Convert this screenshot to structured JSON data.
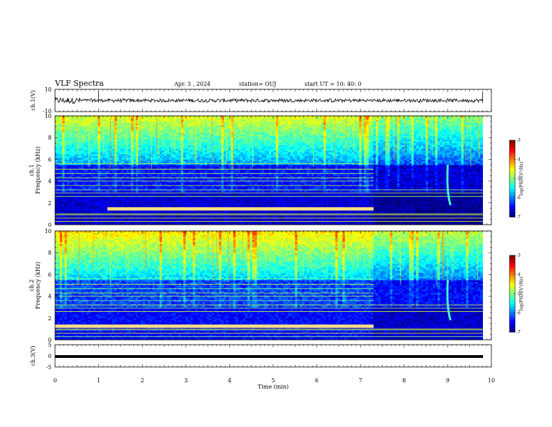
{
  "header": {
    "title": "VLF Spectra",
    "date": "Apr. 3 , 2024",
    "station": "station= OUJ",
    "start": "start  UT  =   10: 40: 0"
  },
  "panels": {
    "ch1_wave": {
      "label": "ch.1(V)",
      "ticks": [
        "10",
        "-10"
      ]
    },
    "ch1_spec": {
      "label_line1": "ch.1",
      "label_line2": "Frequency (kHz)",
      "ticks": [
        "0",
        "2",
        "4",
        "6",
        "8",
        "10"
      ]
    },
    "ch2_spec": {
      "label_line1": "ch.2",
      "label_line2": "Frequency (kHz)",
      "ticks": [
        "0",
        "2",
        "4",
        "6",
        "8",
        "10"
      ]
    },
    "ch3_wave": {
      "label": "ch.3(V)",
      "ticks": [
        "5",
        "0",
        "-5"
      ]
    }
  },
  "xaxis": {
    "label": "Time  (min)",
    "ticks": [
      "0",
      "1",
      "2",
      "3",
      "4",
      "5",
      "6",
      "7",
      "8",
      "9",
      "10"
    ]
  },
  "colorbar": {
    "label": "log(PSD)(V²/Hz)",
    "ticks": [
      "-3",
      "-4",
      "-5",
      "-6",
      "-7"
    ]
  },
  "colors": {
    "background": "#ffffff",
    "axis": "#000000",
    "colormap": [
      "#00007f",
      "#0000ff",
      "#007fff",
      "#00ffff",
      "#7fff7f",
      "#ffff00",
      "#ff7f00",
      "#ff0000",
      "#7f0000"
    ]
  },
  "chart_data": [
    {
      "type": "line",
      "name": "ch.1(V)",
      "xlabel": "Time  (min)",
      "ylabel": "ch.1(V)",
      "xlim": [
        0,
        10
      ],
      "ylim": [
        -10,
        10
      ],
      "description_value": "broadband noise waveform of about ±2 V around 0 V, ending at about 9.8 min",
      "x_end": 9.8
    },
    {
      "type": "heatmap",
      "name": "ch.1",
      "xlabel": "Time  (min)",
      "ylabel": "Frequency (kHz)",
      "xlim": [
        0,
        10
      ],
      "ylim": [
        0,
        10
      ],
      "zlim": [
        -7,
        -3
      ],
      "zlabel": "log(PSD)(V²/Hz)",
      "x_end": 9.8,
      "features": {
        "strong_band_khz": [
          1.3,
          1.6
        ],
        "strong_band_time_min": [
          1.2,
          7.3
        ],
        "high_freq_hiss_khz": [
          5.5,
          10
        ],
        "dropout_after_min": 7.3,
        "whistler_at_min": 9.0
      }
    },
    {
      "type": "heatmap",
      "name": "ch.2",
      "xlabel": "Time  (min)",
      "ylabel": "Frequency (kHz)",
      "xlim": [
        0,
        10
      ],
      "ylim": [
        0,
        10
      ],
      "zlim": [
        -7,
        -3
      ],
      "zlabel": "log(PSD)(V²/Hz)",
      "x_end": 9.8,
      "features": {
        "strong_band_khz": [
          1.1,
          1.4
        ],
        "strong_band_time_min": [
          0,
          7.3
        ],
        "high_freq_hiss_khz": [
          5.5,
          10
        ],
        "dropout_after_min": 7.3,
        "whistler_at_min": 9.0
      }
    },
    {
      "type": "line",
      "name": "ch.3(V)",
      "xlabel": "Time  (min)",
      "ylabel": "ch.3(V)",
      "xlim": [
        0,
        10
      ],
      "ylim": [
        -5,
        5
      ],
      "x": [
        0,
        9.8
      ],
      "y": [
        -1.5,
        -1.5
      ]
    }
  ]
}
